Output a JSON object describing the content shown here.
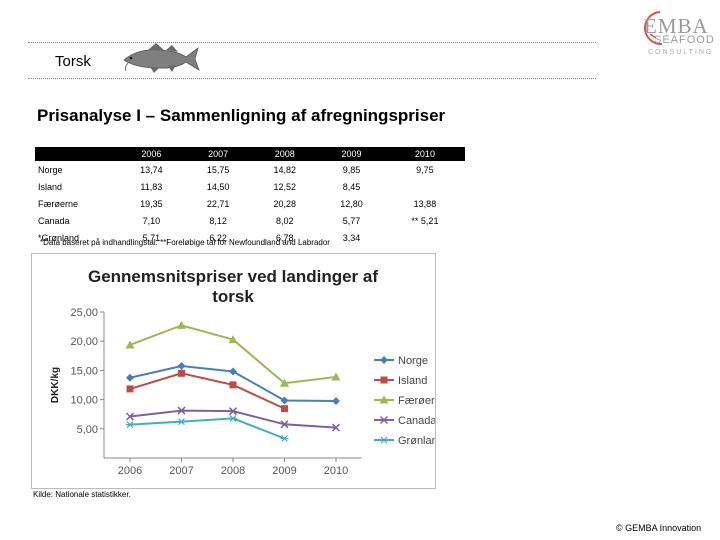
{
  "header": {
    "topic": "Torsk"
  },
  "logo": {
    "emba": "EMBA",
    "seafood": "SEAFOOD",
    "consulting": "CONSULTING"
  },
  "page_title": "Prisanalyse I – Sammenligning af afregningspriser",
  "table": {
    "columns": [
      "",
      "2006",
      "2007",
      "2008",
      "2009",
      "2010"
    ],
    "rows": [
      {
        "label": "Norge",
        "values": [
          "13,74",
          "15,75",
          "14,82",
          "9,85",
          "9,75"
        ]
      },
      {
        "label": "Island",
        "values": [
          "11,83",
          "14,50",
          "12,52",
          "8,45",
          ""
        ]
      },
      {
        "label": "Færøerne",
        "values": [
          "19,35",
          "22,71",
          "20,28",
          "12,80",
          "13,88"
        ]
      },
      {
        "label": "Canada",
        "values": [
          "7,10",
          "8,12",
          "8,02",
          "5,77",
          "** 5,21"
        ]
      },
      {
        "label": "*Grønland",
        "values": [
          "5,71",
          "6,22",
          "6,78",
          "3,34",
          ""
        ]
      }
    ]
  },
  "note": "*Data baseret på indhandlingstal. **Foreløbige tal for Newfoundland and Labrador",
  "chart_data": {
    "type": "line",
    "title": "Gennemsnitspriser ved landinger af torsk",
    "xlabel": "",
    "ylabel": "DKK/kg",
    "x": [
      "2006",
      "2007",
      "2008",
      "2009",
      "2010"
    ],
    "ylim": [
      0,
      25
    ],
    "yticks": [
      "5,00",
      "10,00",
      "15,00",
      "20,00",
      "25,00"
    ],
    "ytick_values": [
      5,
      10,
      15,
      20,
      25
    ],
    "grid": false,
    "legend": "right",
    "series": [
      {
        "name": "Norge",
        "values": [
          13.74,
          15.75,
          14.82,
          9.85,
          9.75
        ],
        "color": "#4a7ebb",
        "marker": "diamond"
      },
      {
        "name": "Island",
        "values": [
          11.83,
          14.5,
          12.52,
          8.45,
          null
        ],
        "color": "#be4b48",
        "marker": "square"
      },
      {
        "name": "Færøerne",
        "values": [
          19.35,
          22.71,
          20.28,
          12.8,
          13.88
        ],
        "color": "#98b954",
        "marker": "triangle"
      },
      {
        "name": "Canada",
        "values": [
          7.1,
          8.12,
          8.02,
          5.77,
          5.21
        ],
        "color": "#7d60a0",
        "marker": "x"
      },
      {
        "name": "Grønland",
        "values": [
          5.71,
          6.22,
          6.78,
          3.34,
          null
        ],
        "color": "#46aac5",
        "marker": "star"
      }
    ]
  },
  "source": "Kilde: Nationale statistikker.",
  "copyright": "© GEMBA Innovation"
}
